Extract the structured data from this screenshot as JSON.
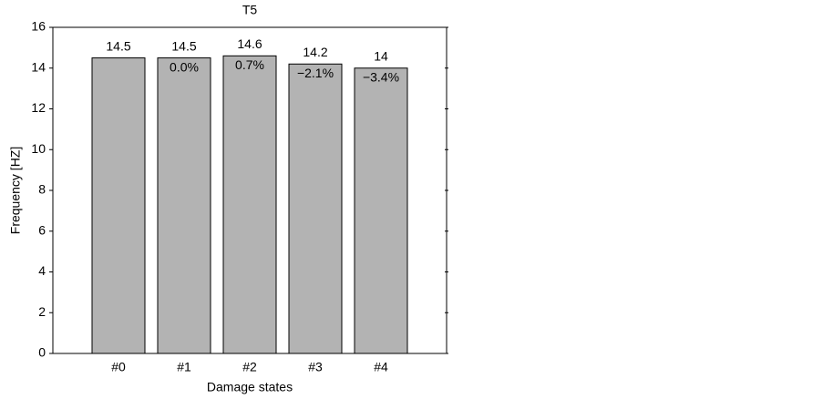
{
  "chart_data": {
    "type": "bar",
    "title": "T5",
    "x_label": "Damage states",
    "y_label": "Frequency [HZ]",
    "categories": [
      "#0",
      "#1",
      "#2",
      "#3",
      "#4"
    ],
    "values": [
      14.5,
      14.5,
      14.6,
      14.2,
      14
    ],
    "change_labels": [
      null,
      "0.0%",
      "0.7%",
      "−2.1%",
      "−3.4%"
    ],
    "color": "#b3b3b3",
    "ylim": [
      0,
      16
    ],
    "yticks": [
      0,
      2,
      4,
      6,
      8,
      10,
      12,
      14,
      16
    ],
    "grid": false
  }
}
